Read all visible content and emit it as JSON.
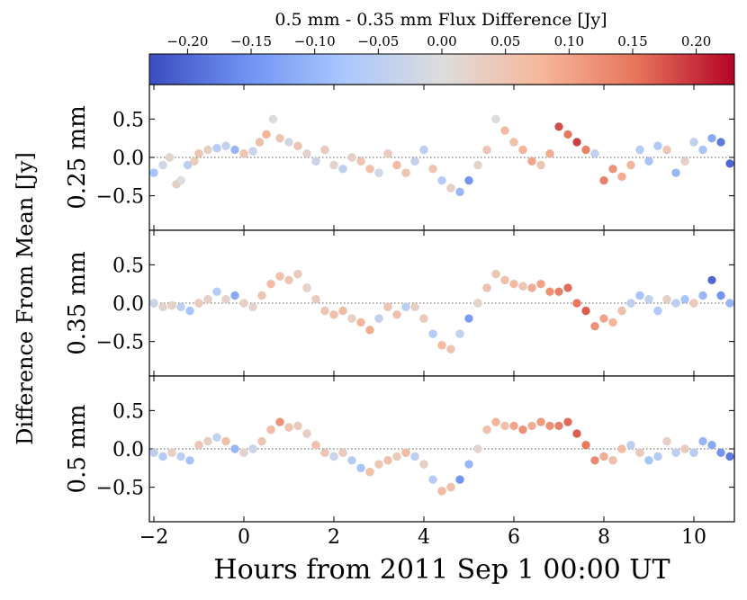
{
  "chart_data": {
    "type": "scatter",
    "colorbar": {
      "label": "0.5 mm - 0.35 mm Flux Difference [Jy]",
      "min": -0.23,
      "max": 0.23,
      "ticks": [
        -0.2,
        -0.15,
        -0.1,
        -0.05,
        0.0,
        0.05,
        0.1,
        0.15,
        0.2
      ],
      "tick_labels": [
        "−0.20",
        "−0.15",
        "−0.10",
        "−0.05",
        "0.00",
        "0.05",
        "0.10",
        "0.15",
        "0.20"
      ],
      "colormap": [
        "#3b4cc0",
        "#6f92f3",
        "#aac7fd",
        "#dddddd",
        "#f7b89c",
        "#e7745b",
        "#b40426"
      ]
    },
    "xlabel": "Hours from 2011 Sep 1 00:00 UT",
    "ylabel": "Difference From Mean [Jy]",
    "xlim": [
      -2.1,
      10.9
    ],
    "ylim": [
      -0.95,
      0.95
    ],
    "xticks": [
      -2,
      0,
      2,
      4,
      6,
      8,
      10
    ],
    "xtick_labels": [
      "−2",
      "0",
      "2",
      "4",
      "6",
      "8",
      "10"
    ],
    "yticks": [
      -0.5,
      0.0,
      0.5
    ],
    "ytick_labels": [
      "−0.5",
      "0.0",
      "0.5"
    ],
    "reference_line": 0.0,
    "panels": [
      {
        "name": "0.25 mm",
        "points": [
          [
            -2.0,
            -0.2,
            -0.08
          ],
          [
            -1.8,
            -0.1,
            -0.02
          ],
          [
            -1.65,
            0.0,
            0.02
          ],
          [
            -1.5,
            -0.35,
            0.03
          ],
          [
            -1.4,
            -0.3,
            0.0
          ],
          [
            -1.25,
            -0.1,
            -0.05
          ],
          [
            -1.1,
            -0.05,
            0.04
          ],
          [
            -1.0,
            0.05,
            0.05
          ],
          [
            -0.8,
            0.1,
            0.03
          ],
          [
            -0.6,
            0.12,
            -0.06
          ],
          [
            -0.4,
            0.15,
            -0.04
          ],
          [
            -0.2,
            0.1,
            -0.1
          ],
          [
            0.0,
            0.05,
            0.05
          ],
          [
            0.2,
            0.08,
            -0.03
          ],
          [
            0.35,
            0.2,
            0.06
          ],
          [
            0.5,
            0.3,
            0.08
          ],
          [
            0.65,
            0.5,
            0.0
          ],
          [
            0.8,
            0.25,
            0.05
          ],
          [
            1.0,
            0.2,
            -0.02
          ],
          [
            1.2,
            0.15,
            0.05
          ],
          [
            1.4,
            0.05,
            0.02
          ],
          [
            1.6,
            -0.05,
            -0.03
          ],
          [
            1.8,
            0.1,
            0.04
          ],
          [
            2.0,
            -0.1,
            0.02
          ],
          [
            2.2,
            -0.15,
            -0.05
          ],
          [
            2.4,
            0.0,
            0.03
          ],
          [
            2.6,
            -0.05,
            0.05
          ],
          [
            2.8,
            -0.15,
            0.06
          ],
          [
            3.0,
            -0.2,
            -0.02
          ],
          [
            3.2,
            0.05,
            0.04
          ],
          [
            3.4,
            -0.1,
            0.07
          ],
          [
            3.6,
            -0.2,
            0.05
          ],
          [
            3.8,
            -0.05,
            -0.04
          ],
          [
            4.0,
            0.1,
            -0.05
          ],
          [
            4.2,
            -0.15,
            0.05
          ],
          [
            4.4,
            -0.3,
            -0.06
          ],
          [
            4.6,
            -0.4,
            0.03
          ],
          [
            4.8,
            -0.45,
            -0.1
          ],
          [
            5.0,
            -0.3,
            -0.15
          ],
          [
            5.2,
            -0.1,
            0.02
          ],
          [
            5.4,
            0.1,
            0.05
          ],
          [
            5.6,
            0.5,
            0.0
          ],
          [
            5.8,
            0.35,
            0.07
          ],
          [
            6.0,
            0.2,
            0.06
          ],
          [
            6.2,
            0.1,
            0.08
          ],
          [
            6.4,
            -0.05,
            0.1
          ],
          [
            6.6,
            -0.1,
            0.05
          ],
          [
            6.8,
            0.05,
            0.09
          ],
          [
            7.0,
            0.4,
            0.18
          ],
          [
            7.2,
            0.3,
            0.15
          ],
          [
            7.4,
            0.2,
            0.19
          ],
          [
            7.6,
            0.1,
            0.14
          ],
          [
            7.8,
            0.05,
            -0.04
          ],
          [
            8.0,
            -0.3,
            0.14
          ],
          [
            8.2,
            -0.15,
            0.12
          ],
          [
            8.4,
            -0.25,
            0.09
          ],
          [
            8.6,
            -0.1,
            0.08
          ],
          [
            8.8,
            0.1,
            -0.06
          ],
          [
            9.0,
            -0.05,
            -0.08
          ],
          [
            9.2,
            0.15,
            -0.07
          ],
          [
            9.4,
            0.1,
            0.05
          ],
          [
            9.6,
            -0.2,
            -0.1
          ],
          [
            9.8,
            -0.05,
            0.03
          ],
          [
            10.0,
            0.2,
            -0.04
          ],
          [
            10.2,
            0.1,
            -0.08
          ],
          [
            10.4,
            0.25,
            -0.12
          ],
          [
            10.6,
            0.2,
            -0.18
          ],
          [
            10.8,
            -0.08,
            -0.2
          ]
        ]
      },
      {
        "name": "0.35 mm",
        "points": [
          [
            -2.0,
            0.0,
            -0.03
          ],
          [
            -1.8,
            -0.05,
            0.02
          ],
          [
            -1.6,
            -0.03,
            0.03
          ],
          [
            -1.4,
            -0.05,
            -0.05
          ],
          [
            -1.2,
            -0.1,
            -0.08
          ],
          [
            -1.0,
            0.0,
            0.04
          ],
          [
            -0.8,
            0.05,
            0.03
          ],
          [
            -0.6,
            0.15,
            -0.06
          ],
          [
            -0.4,
            0.05,
            0.02
          ],
          [
            -0.2,
            0.1,
            -0.12
          ],
          [
            0.0,
            0.0,
            0.03
          ],
          [
            0.2,
            -0.05,
            0.02
          ],
          [
            0.4,
            0.1,
            0.05
          ],
          [
            0.6,
            0.25,
            0.07
          ],
          [
            0.8,
            0.35,
            0.06
          ],
          [
            1.0,
            0.3,
            0.05
          ],
          [
            1.2,
            0.38,
            0.04
          ],
          [
            1.4,
            0.2,
            0.03
          ],
          [
            1.6,
            0.05,
            0.04
          ],
          [
            1.8,
            -0.1,
            0.05
          ],
          [
            2.0,
            -0.15,
            0.06
          ],
          [
            2.2,
            -0.1,
            0.07
          ],
          [
            2.4,
            -0.2,
            0.03
          ],
          [
            2.6,
            -0.25,
            0.08
          ],
          [
            2.8,
            -0.35,
            0.09
          ],
          [
            3.0,
            -0.2,
            -0.04
          ],
          [
            3.2,
            -0.05,
            0.05
          ],
          [
            3.4,
            -0.15,
            0.06
          ],
          [
            3.6,
            -0.05,
            -0.05
          ],
          [
            3.8,
            -0.05,
            0.03
          ],
          [
            4.0,
            -0.2,
            0.04
          ],
          [
            4.2,
            -0.4,
            -0.06
          ],
          [
            4.4,
            -0.55,
            0.07
          ],
          [
            4.6,
            -0.6,
            0.05
          ],
          [
            4.8,
            -0.4,
            -0.04
          ],
          [
            5.0,
            -0.2,
            -0.14
          ],
          [
            5.2,
            0.0,
            0.02
          ],
          [
            5.4,
            0.2,
            0.06
          ],
          [
            5.6,
            0.38,
            0.05
          ],
          [
            5.8,
            0.3,
            0.06
          ],
          [
            6.0,
            0.25,
            0.07
          ],
          [
            6.2,
            0.22,
            0.05
          ],
          [
            6.4,
            0.2,
            0.09
          ],
          [
            6.6,
            0.25,
            0.1
          ],
          [
            6.8,
            0.15,
            0.12
          ],
          [
            7.0,
            0.15,
            0.14
          ],
          [
            7.2,
            0.2,
            0.16
          ],
          [
            7.4,
            0.0,
            0.15
          ],
          [
            7.6,
            -0.1,
            0.17
          ],
          [
            7.8,
            -0.3,
            0.12
          ],
          [
            8.0,
            -0.2,
            0.1
          ],
          [
            8.2,
            -0.25,
            0.08
          ],
          [
            8.4,
            -0.1,
            0.06
          ],
          [
            8.6,
            0.0,
            -0.05
          ],
          [
            8.8,
            0.1,
            -0.08
          ],
          [
            9.0,
            0.05,
            -0.04
          ],
          [
            9.2,
            -0.1,
            -0.07
          ],
          [
            9.4,
            0.05,
            0.03
          ],
          [
            9.6,
            0.0,
            -0.05
          ],
          [
            9.8,
            0.05,
            -0.08
          ],
          [
            10.0,
            0.0,
            0.04
          ],
          [
            10.2,
            0.1,
            -0.1
          ],
          [
            10.4,
            0.3,
            -0.2
          ],
          [
            10.6,
            0.1,
            -0.15
          ],
          [
            10.8,
            0.0,
            -0.1
          ]
        ]
      },
      {
        "name": "0.5 mm",
        "points": [
          [
            -2.0,
            -0.05,
            -0.05
          ],
          [
            -1.8,
            -0.1,
            -0.06
          ],
          [
            -1.6,
            -0.05,
            0.03
          ],
          [
            -1.4,
            -0.1,
            -0.05
          ],
          [
            -1.2,
            -0.15,
            -0.08
          ],
          [
            -1.0,
            0.05,
            0.05
          ],
          [
            -0.8,
            0.1,
            0.03
          ],
          [
            -0.6,
            0.15,
            -0.04
          ],
          [
            -0.4,
            0.1,
            0.06
          ],
          [
            -0.2,
            0.0,
            -0.1
          ],
          [
            0.0,
            -0.05,
            0.02
          ],
          [
            0.2,
            0.0,
            -0.03
          ],
          [
            0.4,
            0.1,
            0.05
          ],
          [
            0.6,
            0.25,
            0.07
          ],
          [
            0.8,
            0.35,
            0.12
          ],
          [
            1.0,
            0.28,
            0.05
          ],
          [
            1.2,
            0.3,
            0.04
          ],
          [
            1.4,
            0.2,
            0.03
          ],
          [
            1.6,
            0.05,
            0.06
          ],
          [
            1.8,
            -0.05,
            0.05
          ],
          [
            2.0,
            -0.1,
            -0.03
          ],
          [
            2.2,
            -0.05,
            0.04
          ],
          [
            2.4,
            -0.15,
            -0.06
          ],
          [
            2.6,
            -0.25,
            -0.08
          ],
          [
            2.8,
            -0.3,
            0.06
          ],
          [
            3.0,
            -0.2,
            0.05
          ],
          [
            3.2,
            -0.15,
            0.06
          ],
          [
            3.4,
            -0.1,
            0.04
          ],
          [
            3.6,
            -0.05,
            0.07
          ],
          [
            3.8,
            -0.1,
            -0.05
          ],
          [
            4.0,
            -0.2,
            0.03
          ],
          [
            4.2,
            -0.4,
            -0.06
          ],
          [
            4.4,
            -0.55,
            0.07
          ],
          [
            4.6,
            -0.5,
            0.06
          ],
          [
            4.8,
            -0.4,
            -0.15
          ],
          [
            5.0,
            -0.2,
            -0.1
          ],
          [
            5.2,
            0.0,
            0.02
          ],
          [
            5.4,
            0.25,
            0.06
          ],
          [
            5.6,
            0.35,
            0.08
          ],
          [
            5.8,
            0.3,
            0.06
          ],
          [
            6.0,
            0.3,
            0.1
          ],
          [
            6.2,
            0.25,
            0.12
          ],
          [
            6.4,
            0.3,
            0.09
          ],
          [
            6.6,
            0.35,
            0.11
          ],
          [
            6.8,
            0.3,
            0.12
          ],
          [
            7.0,
            0.3,
            0.14
          ],
          [
            7.2,
            0.35,
            0.16
          ],
          [
            7.4,
            0.2,
            0.17
          ],
          [
            7.6,
            0.05,
            0.15
          ],
          [
            7.8,
            -0.15,
            0.13
          ],
          [
            8.0,
            -0.1,
            0.09
          ],
          [
            8.2,
            -0.15,
            0.06
          ],
          [
            8.4,
            0.0,
            0.07
          ],
          [
            8.6,
            0.05,
            -0.05
          ],
          [
            8.8,
            -0.05,
            0.04
          ],
          [
            9.0,
            -0.15,
            -0.08
          ],
          [
            9.2,
            -0.1,
            -0.06
          ],
          [
            9.4,
            0.1,
            0.03
          ],
          [
            9.6,
            -0.05,
            -0.05
          ],
          [
            9.8,
            0.0,
            0.04
          ],
          [
            10.0,
            -0.05,
            -0.06
          ],
          [
            10.2,
            0.1,
            -0.1
          ],
          [
            10.4,
            0.05,
            -0.12
          ],
          [
            10.6,
            -0.05,
            -0.15
          ],
          [
            10.8,
            -0.1,
            -0.18
          ]
        ]
      }
    ]
  }
}
